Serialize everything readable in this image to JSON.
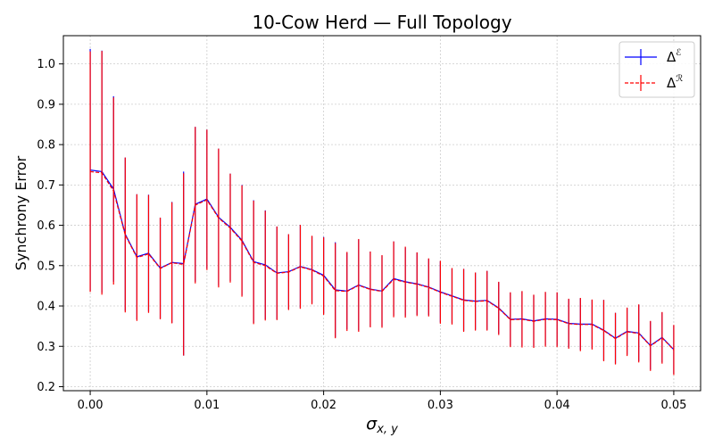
{
  "chart_data": {
    "type": "line",
    "title": "10-Cow Herd — Full Topology",
    "xlabel": "σ",
    "xlabel_sub": "x, y",
    "ylabel": "Synchrony Error",
    "xlim": [
      -0.0023,
      0.0523
    ],
    "ylim": [
      0.19,
      1.07
    ],
    "xticks": [
      0.0,
      0.01,
      0.02,
      0.03,
      0.04,
      0.05
    ],
    "xtick_labels": [
      "0.00",
      "0.01",
      "0.02",
      "0.03",
      "0.04",
      "0.05"
    ],
    "yticks": [
      0.2,
      0.3,
      0.4,
      0.5,
      0.6,
      0.7,
      0.8,
      0.9,
      1.0
    ],
    "ytick_labels": [
      "0.2",
      "0.3",
      "0.4",
      "0.5",
      "0.6",
      "0.7",
      "0.8",
      "0.9",
      "1.0"
    ],
    "grid": true,
    "legend_position": "top-right",
    "x": [
      0.0,
      0.001,
      0.002,
      0.003,
      0.004,
      0.005,
      0.006,
      0.007,
      0.008,
      0.009,
      0.01,
      0.011,
      0.012,
      0.013,
      0.014,
      0.015,
      0.016,
      0.017,
      0.018,
      0.019,
      0.02,
      0.021,
      0.022,
      0.023,
      0.024,
      0.025,
      0.026,
      0.027,
      0.028,
      0.029,
      0.03,
      0.031,
      0.032,
      0.033,
      0.034,
      0.035,
      0.036,
      0.037,
      0.038,
      0.039,
      0.04,
      0.041,
      0.042,
      0.043,
      0.044,
      0.045,
      0.046,
      0.047,
      0.048,
      0.049,
      0.05
    ],
    "series": [
      {
        "name": "Δ",
        "name_sup": "ℰ",
        "color": "#0000ff",
        "linestyle": "solid",
        "values": [
          0.737,
          0.733,
          0.69,
          0.578,
          0.522,
          0.531,
          0.494,
          0.508,
          0.505,
          0.652,
          0.665,
          0.62,
          0.595,
          0.563,
          0.51,
          0.502,
          0.482,
          0.485,
          0.498,
          0.49,
          0.476,
          0.44,
          0.437,
          0.452,
          0.442,
          0.437,
          0.468,
          0.46,
          0.455,
          0.447,
          0.435,
          0.425,
          0.415,
          0.412,
          0.414,
          0.395,
          0.367,
          0.368,
          0.363,
          0.368,
          0.367,
          0.357,
          0.355,
          0.355,
          0.34,
          0.32,
          0.337,
          0.333,
          0.302,
          0.322,
          0.292
        ],
        "yerr": [
          0.3,
          0.3,
          0.23,
          0.19,
          0.155,
          0.145,
          0.125,
          0.15,
          0.228,
          0.192,
          0.172,
          0.17,
          0.133,
          0.137,
          0.152,
          0.135,
          0.115,
          0.093,
          0.103,
          0.083,
          0.095,
          0.118,
          0.095,
          0.113,
          0.093,
          0.088,
          0.092,
          0.085,
          0.077,
          0.07,
          0.076,
          0.068,
          0.077,
          0.071,
          0.073,
          0.064,
          0.066,
          0.068,
          0.064,
          0.066,
          0.066,
          0.06,
          0.064,
          0.06,
          0.075,
          0.063,
          0.058,
          0.07,
          0.06,
          0.062,
          0.06
        ]
      },
      {
        "name": "Δ",
        "name_sup": "ℛ",
        "color": "#ff0000",
        "linestyle": "dashed",
        "values": [
          0.733,
          0.73,
          0.685,
          0.576,
          0.52,
          0.529,
          0.493,
          0.507,
          0.503,
          0.65,
          0.663,
          0.618,
          0.593,
          0.561,
          0.508,
          0.5,
          0.481,
          0.484,
          0.497,
          0.489,
          0.474,
          0.438,
          0.436,
          0.451,
          0.441,
          0.436,
          0.466,
          0.459,
          0.454,
          0.446,
          0.434,
          0.424,
          0.414,
          0.411,
          0.413,
          0.394,
          0.366,
          0.367,
          0.362,
          0.367,
          0.366,
          0.356,
          0.354,
          0.354,
          0.339,
          0.319,
          0.336,
          0.332,
          0.301,
          0.321,
          0.291
        ],
        "yerr": [
          0.298,
          0.302,
          0.232,
          0.192,
          0.157,
          0.146,
          0.126,
          0.15,
          0.226,
          0.194,
          0.174,
          0.172,
          0.135,
          0.138,
          0.153,
          0.136,
          0.116,
          0.094,
          0.104,
          0.085,
          0.096,
          0.118,
          0.098,
          0.115,
          0.094,
          0.09,
          0.094,
          0.088,
          0.079,
          0.072,
          0.078,
          0.07,
          0.078,
          0.072,
          0.074,
          0.066,
          0.068,
          0.07,
          0.066,
          0.068,
          0.068,
          0.062,
          0.066,
          0.062,
          0.076,
          0.064,
          0.06,
          0.072,
          0.062,
          0.064,
          0.062
        ]
      }
    ]
  }
}
